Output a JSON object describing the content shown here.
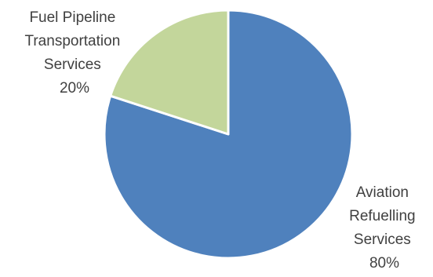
{
  "chart_data": {
    "type": "pie",
    "slices": [
      {
        "label_lines": [
          "Aviation",
          "Refuelling",
          "Services"
        ],
        "percent_label": "80%",
        "value": 80,
        "color": "#4f81bd"
      },
      {
        "label_lines": [
          "Fuel Pipeline",
          "Transportation",
          "Services"
        ],
        "percent_label": "20%",
        "value": 20,
        "color": "#c3d69b"
      }
    ],
    "start_angle_deg": 0,
    "direction": "clockwise",
    "slice_border_color": "#ffffff"
  }
}
